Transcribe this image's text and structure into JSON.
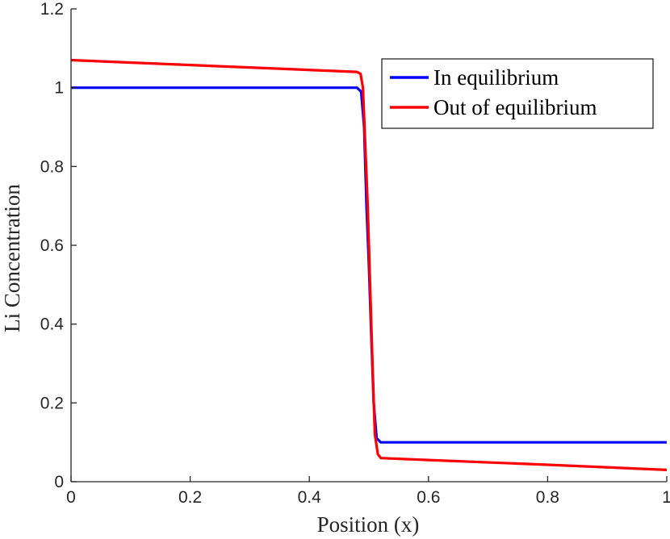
{
  "chart_data": {
    "type": "line",
    "xlabel": "Position (x)",
    "ylabel": "Li Concentration",
    "xlim": [
      0,
      1
    ],
    "ylim": [
      0,
      1.2
    ],
    "xticks": [
      "0",
      "0.2",
      "0.4",
      "0.6",
      "0.8",
      "1"
    ],
    "yticks": [
      "0",
      "0.2",
      "0.4",
      "0.6",
      "0.8",
      "1",
      "1.2"
    ],
    "grid": false,
    "legend_position": "top-right",
    "series": [
      {
        "name": "In equilibrium",
        "color": "#0000ff",
        "x": [
          0,
          0.48,
          0.487,
          0.492,
          0.496,
          0.5,
          0.504,
          0.508,
          0.513,
          0.52,
          1
        ],
        "y": [
          1.0,
          1.0,
          0.99,
          0.9,
          0.7,
          0.55,
          0.37,
          0.2,
          0.11,
          0.1,
          0.1
        ]
      },
      {
        "name": "Out of equilibrium",
        "color": "#ff0000",
        "x": [
          0,
          0.48,
          0.486,
          0.49,
          0.494,
          0.498,
          0.502,
          0.506,
          0.51,
          0.515,
          0.52,
          0.6,
          0.8,
          1
        ],
        "y": [
          1.07,
          1.04,
          1.035,
          1.0,
          0.85,
          0.7,
          0.5,
          0.3,
          0.12,
          0.07,
          0.06,
          0.055,
          0.043,
          0.03
        ]
      }
    ]
  }
}
